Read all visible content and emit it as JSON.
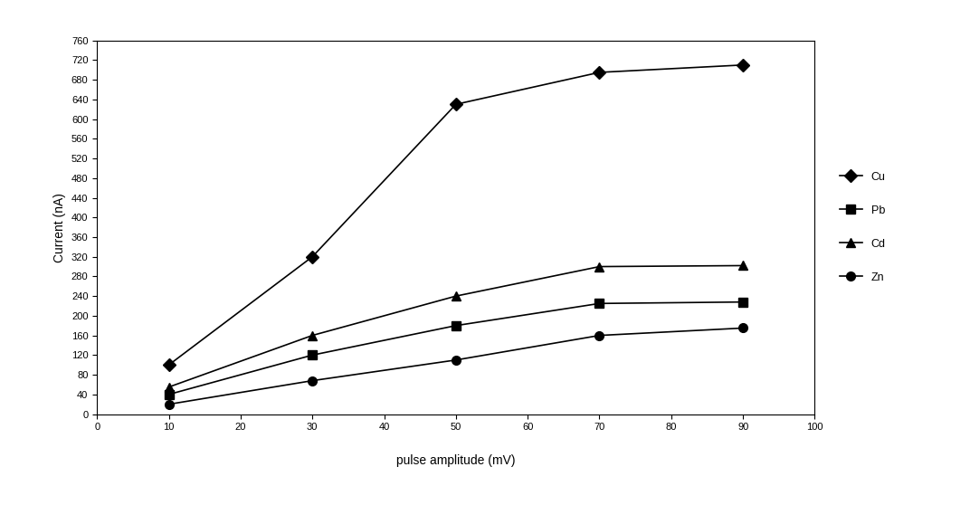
{
  "chart_data": {
    "type": "line",
    "x_label": "pulse amplitude (mV)",
    "y_label": "Current (nA)",
    "x": [
      10,
      30,
      50,
      70,
      90
    ],
    "series": [
      {
        "name": "Cu",
        "color": "#000000",
        "marker": "diamond",
        "line_style": "solid",
        "values": [
          100,
          320,
          630,
          695,
          710
        ]
      },
      {
        "name": "Pb",
        "color": "#000000",
        "marker": "square",
        "line_style": "solid",
        "values": [
          40,
          120,
          180,
          225,
          228
        ]
      },
      {
        "name": "Cd",
        "color": "#000000",
        "marker": "triangle",
        "line_style": "solid",
        "values": [
          55,
          160,
          240,
          300,
          302
        ]
      },
      {
        "name": "Zn",
        "color": "#000000",
        "marker": "circle",
        "line_style": "solid",
        "values": [
          20,
          68,
          110,
          160,
          175
        ]
      }
    ],
    "xlim": [
      0,
      100
    ],
    "xticks": [
      0,
      10,
      20,
      30,
      40,
      50,
      60,
      70,
      80,
      90,
      100
    ],
    "ylim": [
      0,
      760
    ],
    "yticks": [
      0,
      40,
      80,
      120,
      160,
      200,
      240,
      280,
      320,
      360,
      400,
      440,
      480,
      520,
      560,
      600,
      640,
      680,
      720,
      760
    ],
    "grid": false,
    "legend": "right"
  }
}
